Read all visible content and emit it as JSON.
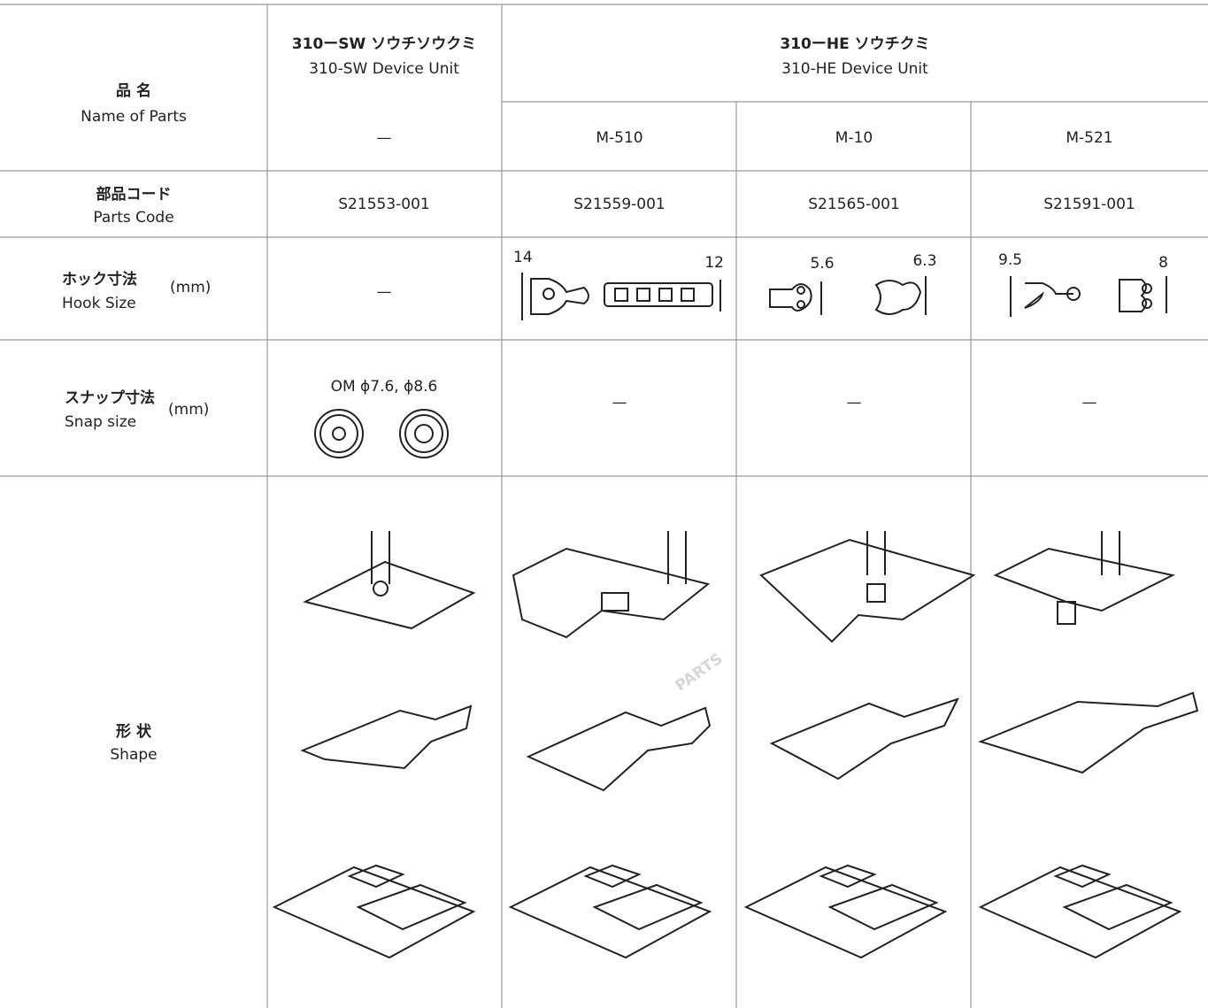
{
  "header": {
    "name_label": {
      "ja": "品 名",
      "en": "Name of Parts"
    },
    "groups": [
      {
        "ja": "310ーSW ソウチソウクミ",
        "en": "310-SW Device Unit"
      },
      {
        "ja": "310ーHE ソウチクミ",
        "en": "310-HE Device Unit"
      }
    ],
    "models": [
      "—",
      "M-510",
      "M-10",
      "M-521"
    ]
  },
  "parts_code": {
    "ja": "部品コード",
    "en": "Parts Code",
    "values": [
      "S21553-001",
      "S21559-001",
      "S21565-001",
      "S21591-001"
    ]
  },
  "hook_size": {
    "ja": "ホック寸法",
    "en": "Hook Size",
    "unit": "(mm)",
    "none": "—",
    "dims": [
      [
        "14",
        "12"
      ],
      [
        "5.6",
        "6.3"
      ],
      [
        "9.5",
        "8"
      ]
    ]
  },
  "snap_size": {
    "ja": "スナップ寸法",
    "en": "Snap size",
    "unit": "(mm)",
    "values": [
      "OM ϕ7.6, ϕ8.6",
      "—",
      "—",
      "—"
    ]
  },
  "shape": {
    "ja": "形 状",
    "en": "Shape"
  },
  "watermark": "PARTS"
}
